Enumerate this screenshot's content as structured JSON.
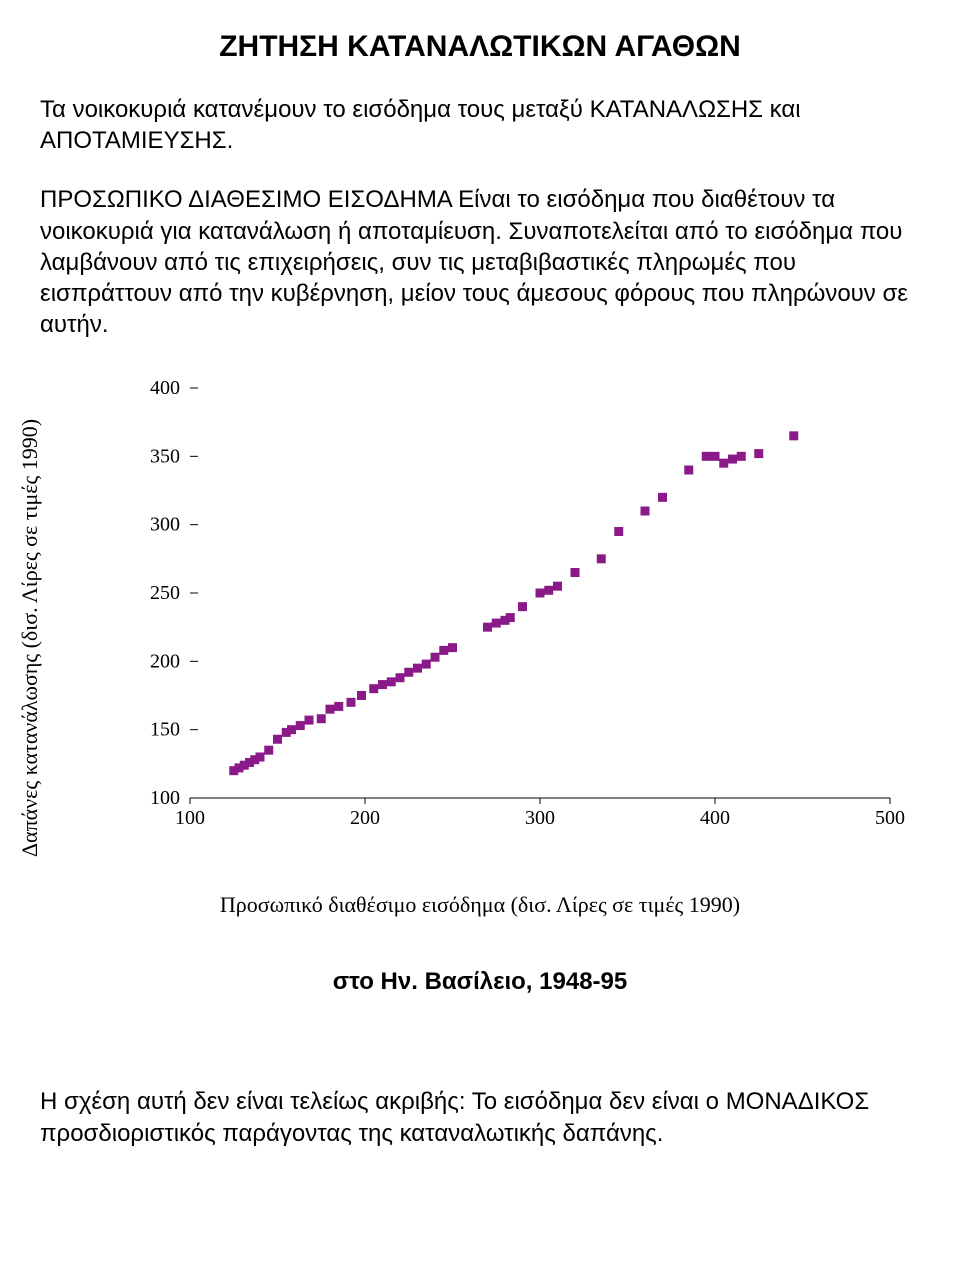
{
  "title": "ΖΗΤΗΣΗ ΚΑΤΑΝΑΛΩΤΙΚΩΝ ΑΓΑΘΩΝ",
  "para1": "Τα νοικοκυριά κατανέμουν το εισόδημα τους μεταξύ ΚΑΤΑΝΑΛΩΣΗΣ και ΑΠΟΤΑΜΙΕΥΣΗΣ.",
  "para2": "ΠΡΟΣΩΠΙΚΟ ΔΙΑΘΕΣΙΜΟ ΕΙΣΟΔΗΜΑ Είναι το εισόδημα που διαθέτουν τα νοικοκυριά για κατανάλωση ή αποταμίευση. Συναποτελείται από το εισόδημα που λαμβάνουν από τις επιχειρήσεις, συν τις μεταβιβαστικές πληρωμές που εισπράττουν από την κυβέρνηση, μείον τους άμεσους φόρους που πληρώνουν σε αυτήν.",
  "chart": {
    "type": "scatter",
    "ylabel": "Δαπάνες κατανάλωσης (δισ. Λίρες σε τιμές 1990)",
    "xlabel": "Προσωπικό διαθέσιμο εισόδημα (δισ. Λίρες σε τιμές 1990)",
    "xlim": [
      100,
      500
    ],
    "ylim": [
      100,
      400
    ],
    "xticks": [
      100,
      200,
      300,
      400,
      500
    ],
    "yticks": [
      100,
      150,
      200,
      250,
      300,
      350,
      400
    ],
    "marker_color": "#8b1a89",
    "marker_size": 9,
    "background": "#ffffff",
    "axis_color": "#000000",
    "grid_tick_color": "#000000",
    "data": [
      [
        125,
        120
      ],
      [
        128,
        122
      ],
      [
        131,
        124
      ],
      [
        134,
        126
      ],
      [
        137,
        128
      ],
      [
        140,
        130
      ],
      [
        145,
        135
      ],
      [
        150,
        143
      ],
      [
        155,
        148
      ],
      [
        158,
        150
      ],
      [
        163,
        153
      ],
      [
        168,
        157
      ],
      [
        175,
        158
      ],
      [
        180,
        165
      ],
      [
        185,
        167
      ],
      [
        192,
        170
      ],
      [
        198,
        175
      ],
      [
        205,
        180
      ],
      [
        210,
        183
      ],
      [
        215,
        185
      ],
      [
        220,
        188
      ],
      [
        225,
        192
      ],
      [
        230,
        195
      ],
      [
        235,
        198
      ],
      [
        240,
        203
      ],
      [
        245,
        208
      ],
      [
        250,
        210
      ],
      [
        270,
        225
      ],
      [
        275,
        228
      ],
      [
        280,
        230
      ],
      [
        283,
        232
      ],
      [
        290,
        240
      ],
      [
        300,
        250
      ],
      [
        305,
        252
      ],
      [
        310,
        255
      ],
      [
        320,
        265
      ],
      [
        335,
        275
      ],
      [
        345,
        295
      ],
      [
        360,
        310
      ],
      [
        370,
        320
      ],
      [
        385,
        340
      ],
      [
        395,
        350
      ],
      [
        400,
        350
      ],
      [
        405,
        345
      ],
      [
        410,
        348
      ],
      [
        415,
        350
      ],
      [
        425,
        352
      ],
      [
        445,
        365
      ]
    ]
  },
  "subcaption": "στο Ην. Βασίλειο, 1948-95",
  "para3": "Η σχέση αυτή δεν είναι τελείως ακριβής: Το εισόδημα δεν είναι ο ΜΟΝΑΔΙΚΟΣ προσδιοριστικός παράγοντας της καταναλωτικής δαπάνης."
}
